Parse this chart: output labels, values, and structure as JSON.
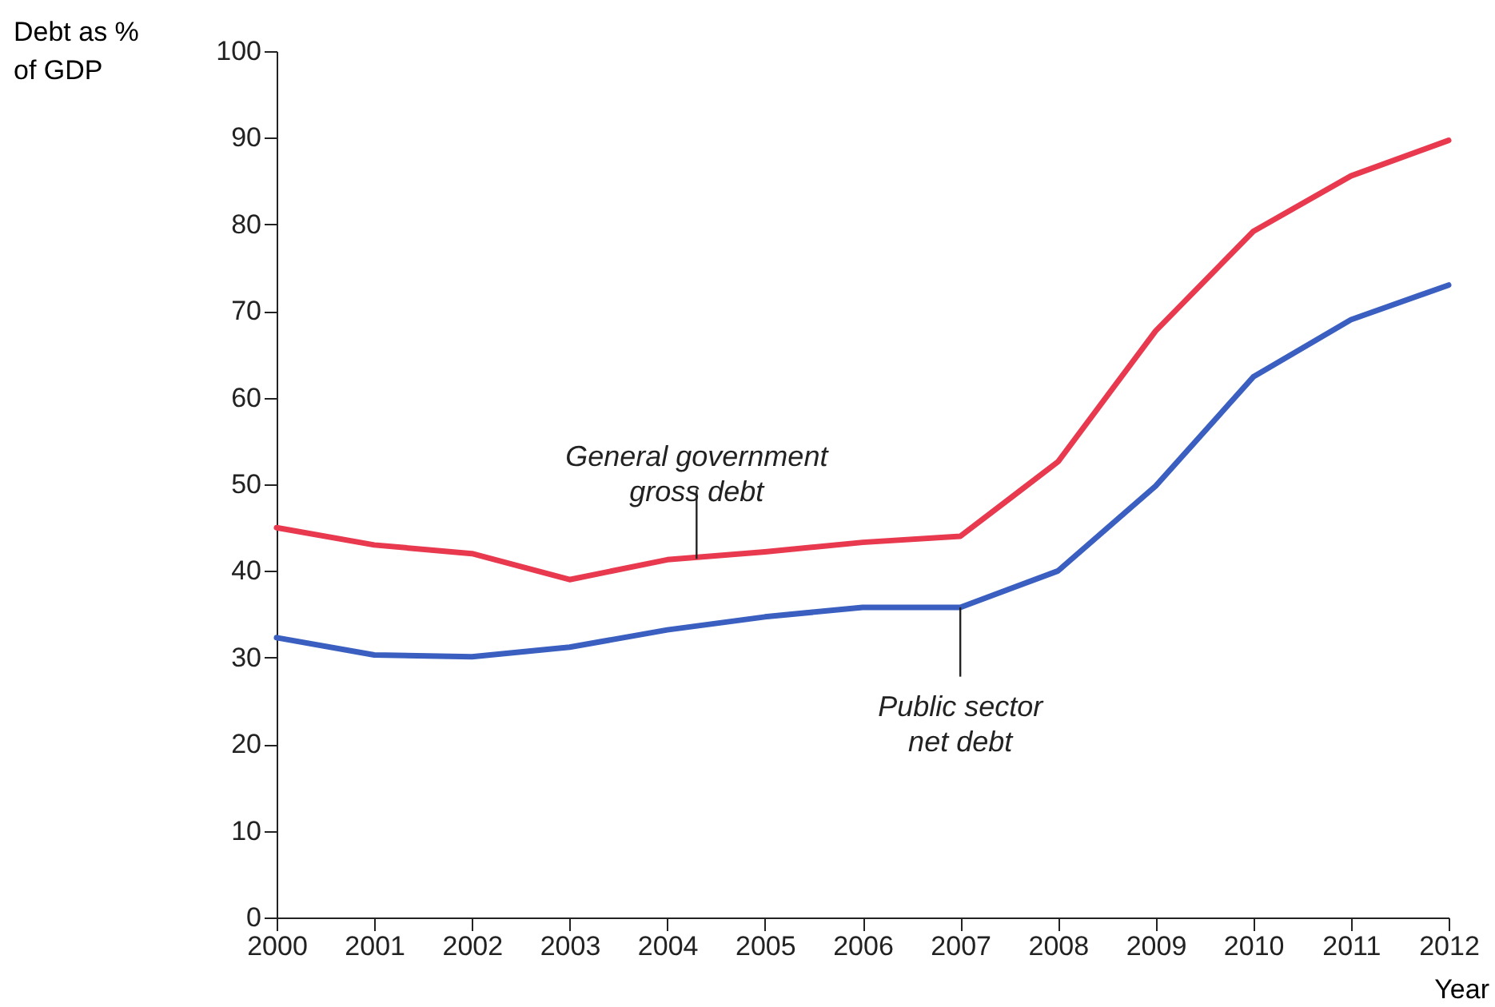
{
  "chart_data": {
    "type": "line",
    "xlabel": "Year",
    "ylabel": "Debt as %\nof GDP",
    "x": [
      2000,
      2001,
      2002,
      2003,
      2004,
      2005,
      2006,
      2007,
      2008,
      2009,
      2010,
      2011,
      2012
    ],
    "series": [
      {
        "color": "#e8394f",
        "values": [
          45,
          43,
          42,
          39,
          41.3,
          42.2,
          43.3,
          44,
          52.6,
          67.7,
          79.2,
          85.6,
          89.7
        ]
      },
      {
        "color": "#3a5fc0",
        "values": [
          32.3,
          30.3,
          30.1,
          31.2,
          33.2,
          34.7,
          35.8,
          35.8,
          40,
          49.8,
          62.4,
          69,
          73
        ]
      }
    ],
    "annotations": [
      {
        "text": "General government\ngross debt",
        "x": 2004.3,
        "y": 41.4
      },
      {
        "text": "Public sector\nnet debt",
        "x": 2007,
        "y": 35.8
      }
    ],
    "xlim": [
      2000,
      2012
    ],
    "xticks": [
      2000,
      2001,
      2002,
      2003,
      2004,
      2005,
      2006,
      2007,
      2008,
      2009,
      2010,
      2011,
      2012
    ],
    "ylim": [
      0,
      100
    ],
    "yticks": [
      0,
      10,
      20,
      30,
      40,
      50,
      60,
      70,
      80,
      90,
      100
    ],
    "grid": false,
    "legend": false,
    "marker": "none",
    "line_style": "solid"
  }
}
